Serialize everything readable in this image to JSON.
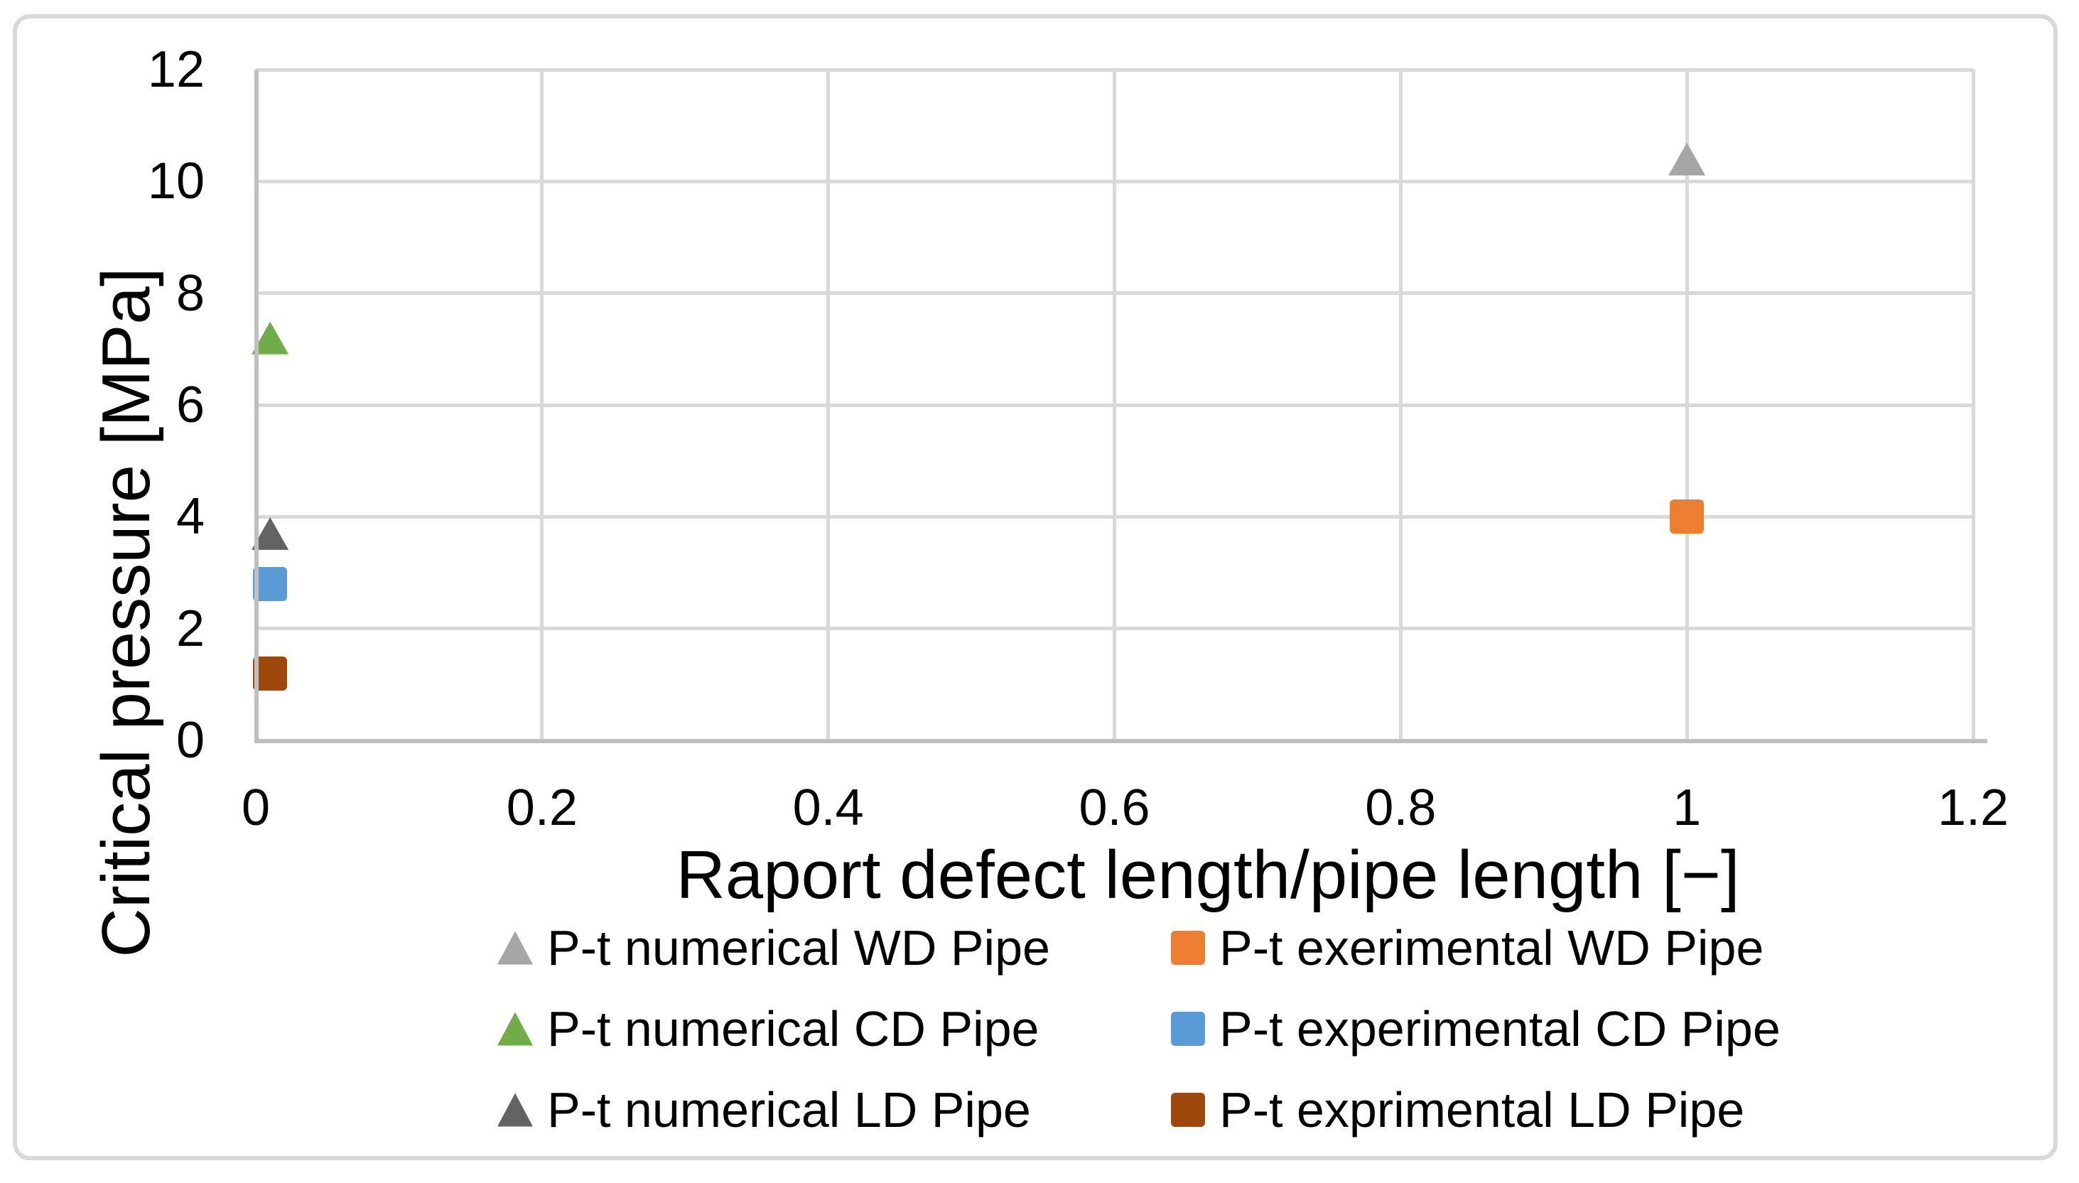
{
  "chart_data": {
    "type": "scatter",
    "title": "",
    "xlabel": "Raport defect length/pipe length [−]",
    "ylabel": "Critical pressure [MPa]",
    "xlim": [
      0,
      1.2
    ],
    "ylim": [
      0,
      12
    ],
    "x_ticks": [
      {
        "label": "0",
        "value": 0
      },
      {
        "label": "0.2",
        "value": 0.2
      },
      {
        "label": "0.4",
        "value": 0.4
      },
      {
        "label": "0.6",
        "value": 0.6
      },
      {
        "label": "0.8",
        "value": 0.8
      },
      {
        "label": "1",
        "value": 1
      },
      {
        "label": "1.2",
        "value": 1.2
      }
    ],
    "y_ticks": [
      {
        "label": "0",
        "value": 0
      },
      {
        "label": "2",
        "value": 2
      },
      {
        "label": "4",
        "value": 4
      },
      {
        "label": "6",
        "value": 6
      },
      {
        "label": "8",
        "value": 8
      },
      {
        "label": "10",
        "value": 10
      },
      {
        "label": "12",
        "value": 12
      }
    ],
    "grid": true,
    "legend_position": "bottom",
    "series": [
      {
        "name": "P-t numerical WD Pipe",
        "marker": "triangle",
        "color": "#a6a6a6",
        "points": [
          {
            "x": 1,
            "y": 10.4
          }
        ]
      },
      {
        "name": "P-t exerimental WD Pipe",
        "marker": "square",
        "color": "#ed7d31",
        "points": [
          {
            "x": 1,
            "y": 4.0
          }
        ]
      },
      {
        "name": "P-t numerical CD Pipe",
        "marker": "triangle",
        "color": "#70ad47",
        "points": [
          {
            "x": 0.01,
            "y": 7.2
          }
        ]
      },
      {
        "name": "P-t experimental CD Pipe",
        "marker": "square",
        "color": "#5b9bd5",
        "points": [
          {
            "x": 0.01,
            "y": 2.8
          }
        ]
      },
      {
        "name": "P-t numerical LD Pipe",
        "marker": "triangle",
        "color": "#636363",
        "points": [
          {
            "x": 0.01,
            "y": 3.7
          }
        ]
      },
      {
        "name": "P-t exprimental LD Pipe",
        "marker": "square",
        "color": "#9e480e",
        "points": [
          {
            "x": 0.01,
            "y": 1.2
          }
        ]
      }
    ],
    "colors": {
      "gridline": "#d9d9d9",
      "axis": "#bfbfbf",
      "border": "#d9d9d9",
      "text": "#000000",
      "background": "#ffffff"
    }
  }
}
